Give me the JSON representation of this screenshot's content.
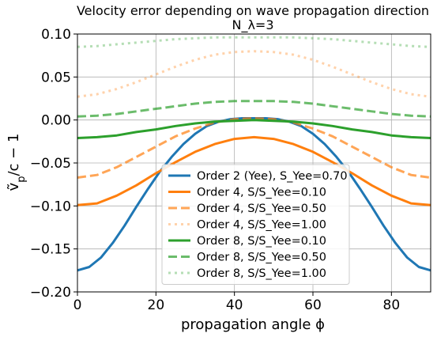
{
  "chart_data": {
    "type": "line",
    "title": "Velocity error depending on wave propagation direction",
    "subtitle": "N_λ=3",
    "xlabel": "propagation angle ϕ",
    "ylabel": "ṽ_p/c − 1",
    "xlim": [
      0,
      90
    ],
    "ylim": [
      -0.2,
      0.1
    ],
    "xticks": [
      0,
      20,
      40,
      60,
      80
    ],
    "xtick_labels": [
      "0",
      "20",
      "40",
      "60",
      "80"
    ],
    "yticks": [
      -0.2,
      -0.15,
      -0.1,
      -0.05,
      0.0,
      0.05,
      0.1
    ],
    "ytick_labels": [
      "−0.20",
      "−0.15",
      "−0.10",
      "−0.05",
      "0.00",
      "0.05",
      "0.10"
    ],
    "grid": true,
    "legend_position": "lower-center",
    "series": [
      {
        "name": "Order 2 (Yee), S_Yee=0.70",
        "color": "#1f77b4",
        "dash": "solid",
        "alpha": 1.0,
        "x": [
          0,
          3,
          6,
          9,
          12,
          15,
          18,
          21,
          24,
          27,
          30,
          33,
          36,
          39,
          42,
          45,
          48,
          51,
          54,
          57,
          60,
          63,
          66,
          69,
          72,
          75,
          78,
          81,
          84,
          87,
          90
        ],
        "y": [
          -0.175,
          -0.171,
          -0.16,
          -0.143,
          -0.123,
          -0.101,
          -0.08,
          -0.06,
          -0.043,
          -0.028,
          -0.016,
          -0.007,
          -0.002,
          0.001,
          0.002,
          0.002,
          0.002,
          0.001,
          -0.002,
          -0.007,
          -0.016,
          -0.028,
          -0.043,
          -0.06,
          -0.08,
          -0.101,
          -0.123,
          -0.143,
          -0.16,
          -0.171,
          -0.175
        ]
      },
      {
        "name": "Order 4, S/S_Yee=0.10",
        "color": "#ff7f0e",
        "dash": "solid",
        "alpha": 1.0,
        "x": [
          0,
          5,
          10,
          15,
          20,
          25,
          30,
          35,
          40,
          45,
          50,
          55,
          60,
          65,
          70,
          75,
          80,
          85,
          90
        ],
        "y": [
          -0.099,
          -0.097,
          -0.088,
          -0.076,
          -0.062,
          -0.049,
          -0.037,
          -0.028,
          -0.022,
          -0.02,
          -0.022,
          -0.028,
          -0.037,
          -0.049,
          -0.062,
          -0.076,
          -0.088,
          -0.097,
          -0.099
        ]
      },
      {
        "name": "Order 4, S/S_Yee=0.50",
        "color": "#ff7f0e",
        "dash": "dashed",
        "alpha": 0.7,
        "x": [
          0,
          5,
          10,
          15,
          20,
          25,
          30,
          35,
          40,
          45,
          50,
          55,
          60,
          65,
          70,
          75,
          80,
          85,
          90
        ],
        "y": [
          -0.067,
          -0.064,
          -0.055,
          -0.043,
          -0.031,
          -0.019,
          -0.01,
          -0.003,
          0.001,
          0.002,
          0.001,
          -0.003,
          -0.01,
          -0.019,
          -0.031,
          -0.043,
          -0.055,
          -0.064,
          -0.067
        ]
      },
      {
        "name": "Order 4, S/S_Yee=1.00",
        "color": "#ff7f0e",
        "dash": "dotted",
        "alpha": 0.35,
        "x": [
          0,
          5,
          10,
          15,
          20,
          25,
          30,
          35,
          40,
          45,
          50,
          55,
          60,
          65,
          70,
          75,
          80,
          85,
          90
        ],
        "y": [
          0.027,
          0.03,
          0.036,
          0.044,
          0.053,
          0.062,
          0.07,
          0.076,
          0.079,
          0.08,
          0.079,
          0.076,
          0.07,
          0.062,
          0.053,
          0.044,
          0.036,
          0.03,
          0.027
        ]
      },
      {
        "name": "Order 8, S/S_Yee=0.10",
        "color": "#2ca02c",
        "dash": "solid",
        "alpha": 1.0,
        "x": [
          0,
          5,
          10,
          15,
          20,
          25,
          30,
          35,
          40,
          45,
          50,
          55,
          60,
          65,
          70,
          75,
          80,
          85,
          90
        ],
        "y": [
          -0.021,
          -0.02,
          -0.018,
          -0.014,
          -0.011,
          -0.007,
          -0.004,
          -0.002,
          -0.001,
          0.0,
          -0.001,
          -0.002,
          -0.004,
          -0.007,
          -0.011,
          -0.014,
          -0.018,
          -0.02,
          -0.021
        ]
      },
      {
        "name": "Order 8, S/S_Yee=0.50",
        "color": "#2ca02c",
        "dash": "dashed",
        "alpha": 0.7,
        "x": [
          0,
          5,
          10,
          15,
          20,
          25,
          30,
          35,
          40,
          45,
          50,
          55,
          60,
          65,
          70,
          75,
          80,
          85,
          90
        ],
        "y": [
          0.004,
          0.005,
          0.007,
          0.01,
          0.013,
          0.016,
          0.019,
          0.021,
          0.022,
          0.022,
          0.022,
          0.021,
          0.019,
          0.016,
          0.013,
          0.01,
          0.007,
          0.005,
          0.004
        ]
      },
      {
        "name": "Order 8, S/S_Yee=1.00",
        "color": "#2ca02c",
        "dash": "dotted",
        "alpha": 0.35,
        "x": [
          0,
          5,
          10,
          15,
          20,
          25,
          30,
          35,
          40,
          45,
          50,
          55,
          60,
          65,
          70,
          75,
          80,
          85,
          90
        ],
        "y": [
          0.085,
          0.086,
          0.088,
          0.09,
          0.092,
          0.094,
          0.095,
          0.096,
          0.096,
          0.096,
          0.096,
          0.096,
          0.095,
          0.094,
          0.092,
          0.09,
          0.088,
          0.086,
          0.085
        ]
      }
    ]
  }
}
